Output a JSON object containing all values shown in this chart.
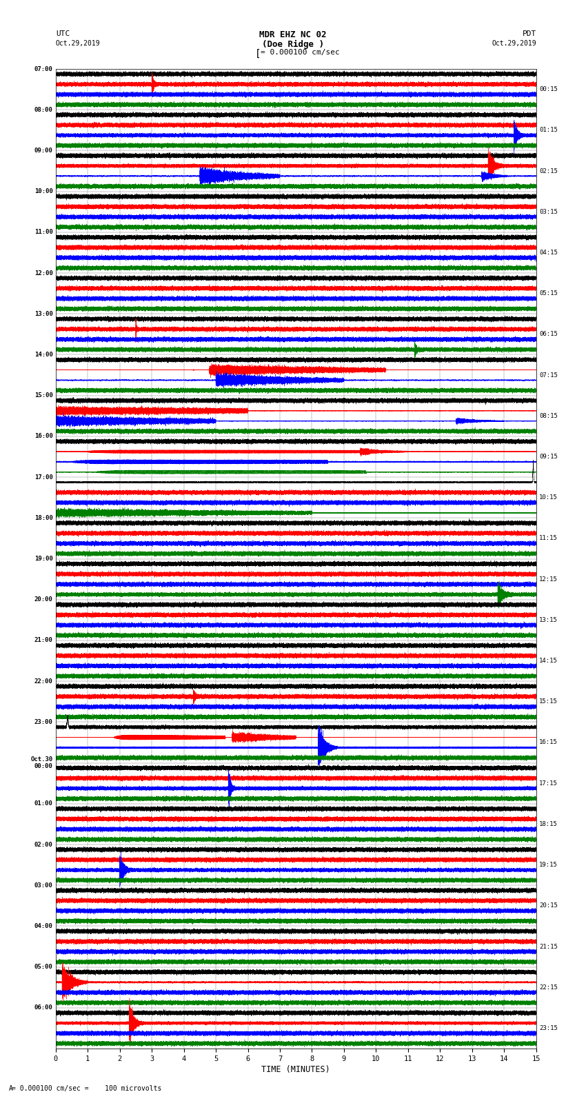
{
  "title_line1": "MDR EHZ NC 02",
  "title_line2": "(Doe Ridge )",
  "scale_text": "= 0.000100 cm/sec",
  "bottom_scale_text": "= 0.000100 cm/sec =    100 microvolts",
  "xlabel": "TIME (MINUTES)",
  "left_times": [
    "07:00",
    "08:00",
    "09:00",
    "10:00",
    "11:00",
    "12:00",
    "13:00",
    "14:00",
    "15:00",
    "16:00",
    "17:00",
    "18:00",
    "19:00",
    "20:00",
    "21:00",
    "22:00",
    "23:00",
    "Oct.30\n00:00",
    "01:00",
    "02:00",
    "03:00",
    "04:00",
    "05:00",
    "06:00"
  ],
  "right_times": [
    "00:15",
    "01:15",
    "02:15",
    "03:15",
    "04:15",
    "05:15",
    "06:15",
    "07:15",
    "08:15",
    "09:15",
    "10:15",
    "11:15",
    "12:15",
    "13:15",
    "14:15",
    "15:15",
    "16:15",
    "17:15",
    "18:15",
    "19:15",
    "20:15",
    "21:15",
    "22:15",
    "23:15"
  ],
  "num_rows": 24,
  "traces_per_row": 4,
  "minutes": 15,
  "sample_rate": 100,
  "background_color": "#ffffff",
  "grid_color": "#aaaaaa",
  "trace_colors": [
    "#000000",
    "#ff0000",
    "#0000ff",
    "#008000"
  ],
  "figwidth": 8.5,
  "figheight": 16.13,
  "dpi": 100
}
